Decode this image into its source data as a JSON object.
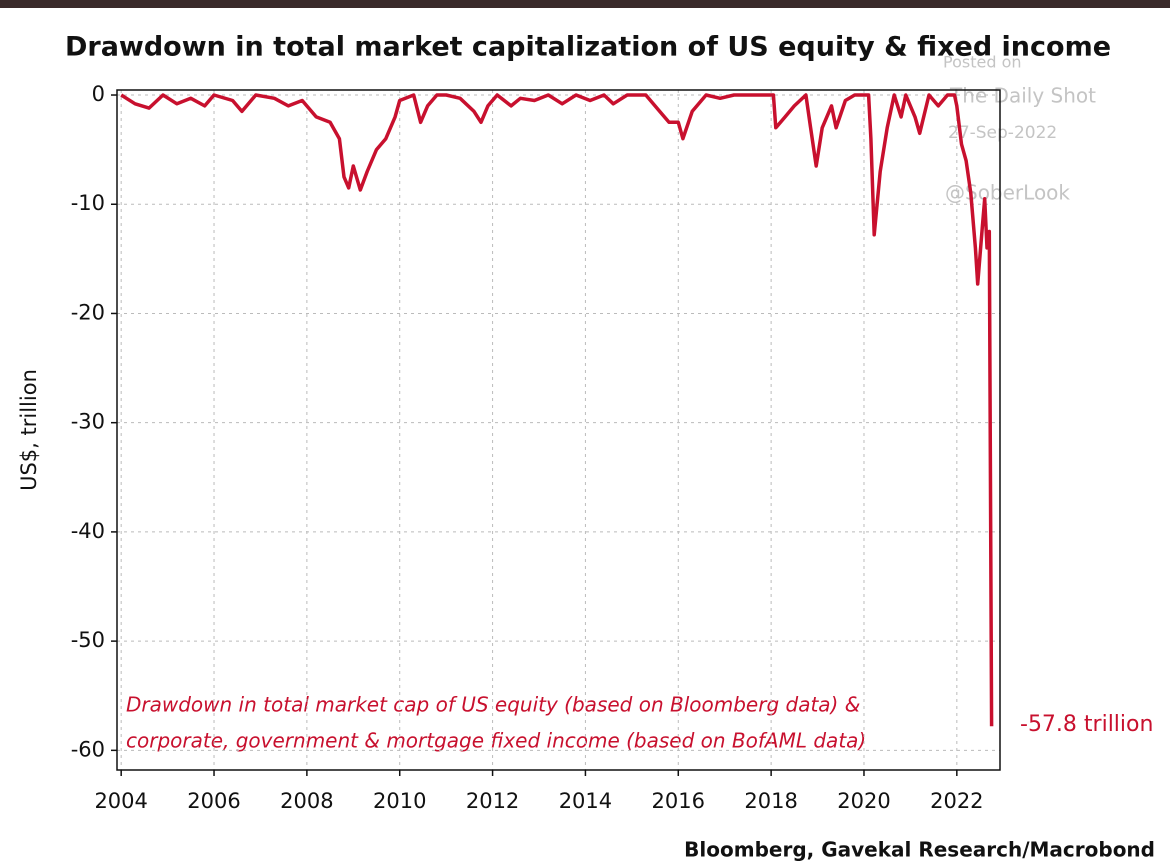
{
  "chart_data": {
    "type": "line",
    "title": "Drawdown in total market capitalization of US equity & fixed income",
    "y_label": "US$, trillion",
    "source": "Bloomberg, Gavekal Research/Macrobond",
    "annotation_lines": [
      "Drawdown in total market cap of US equity (based on Bloomberg data) &",
      "corporate, government & mortgage fixed income (based on BofAML data)"
    ],
    "end_label": "-57.8 trillion",
    "watermark": [
      "Posted on",
      "The Daily Shot",
      "27-Sep-2022",
      "@SoberLook"
    ],
    "x": [
      2004.0,
      2004.3,
      2004.6,
      2004.9,
      2005.2,
      2005.5,
      2005.8,
      2006.0,
      2006.4,
      2006.6,
      2006.9,
      2007.3,
      2007.6,
      2007.9,
      2008.2,
      2008.5,
      2008.7,
      2008.8,
      2008.9,
      2009.0,
      2009.15,
      2009.3,
      2009.5,
      2009.7,
      2009.9,
      2010.0,
      2010.3,
      2010.45,
      2010.6,
      2010.8,
      2011.0,
      2011.3,
      2011.6,
      2011.75,
      2011.9,
      2012.1,
      2012.4,
      2012.6,
      2012.9,
      2013.2,
      2013.5,
      2013.8,
      2014.1,
      2014.4,
      2014.6,
      2014.9,
      2015.3,
      2015.6,
      2015.8,
      2016.0,
      2016.1,
      2016.3,
      2016.6,
      2016.9,
      2017.2,
      2017.6,
      2018.05,
      2018.1,
      2018.3,
      2018.5,
      2018.75,
      2018.85,
      2018.97,
      2019.1,
      2019.3,
      2019.4,
      2019.6,
      2019.8,
      2020.1,
      2020.15,
      2020.22,
      2020.35,
      2020.5,
      2020.65,
      2020.8,
      2020.9,
      2021.1,
      2021.2,
      2021.4,
      2021.6,
      2021.8,
      2021.95,
      2022.0,
      2022.1,
      2022.2,
      2022.3,
      2022.4,
      2022.45,
      2022.55,
      2022.6,
      2022.65,
      2022.7,
      2022.75
    ],
    "series": [
      {
        "name": "Drawdown",
        "color": "#c8102e",
        "values": [
          0,
          -0.8,
          -1.2,
          0,
          -0.8,
          -0.3,
          -1,
          0,
          -0.5,
          -1.5,
          0,
          -0.3,
          -1,
          -0.5,
          -2,
          -2.5,
          -4,
          -7.5,
          -8.5,
          -6.5,
          -8.7,
          -7,
          -5,
          -4,
          -2,
          -0.5,
          0,
          -2.5,
          -1,
          0,
          0,
          -0.3,
          -1.5,
          -2.5,
          -1,
          0,
          -1,
          -0.3,
          -0.5,
          0,
          -0.8,
          0,
          -0.5,
          0,
          -0.8,
          0,
          0,
          -1.5,
          -2.5,
          -2.5,
          -4,
          -1.5,
          0,
          -0.3,
          0,
          0,
          0,
          -3,
          -2,
          -1,
          0,
          -3,
          -6.5,
          -3,
          -1,
          -3,
          -0.5,
          0,
          0,
          -4,
          -12.8,
          -7,
          -3,
          0,
          -2,
          0,
          -2,
          -3.5,
          0,
          -1,
          0,
          0,
          -1,
          -4.5,
          -6,
          -9,
          -14,
          -17.3,
          -12,
          -9.5,
          -14,
          -12.5,
          -57.8
        ]
      }
    ],
    "xlim": [
      2003.91,
      2022.93
    ],
    "ylim": [
      -61.8,
      0.46
    ],
    "xticks": [
      2004,
      2006,
      2008,
      2010,
      2012,
      2014,
      2016,
      2018,
      2020,
      2022
    ],
    "yticks": [
      0,
      -10,
      -20,
      -30,
      -40,
      -50,
      -60
    ],
    "grid": true
  }
}
